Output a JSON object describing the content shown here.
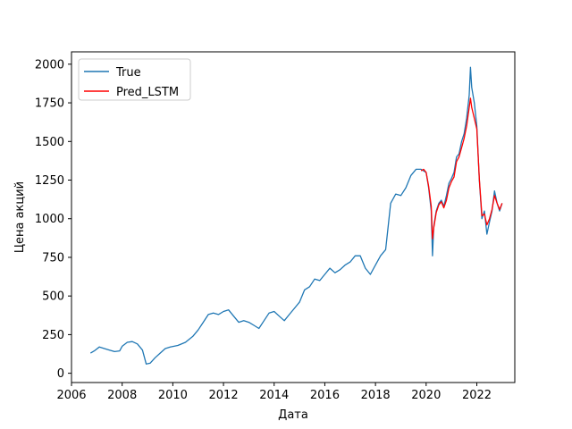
{
  "chart_data": {
    "type": "line",
    "title": "",
    "xlabel": "Дата",
    "ylabel": "Цена акций",
    "xlim": [
      2006.0,
      2023.5
    ],
    "ylim": [
      -60,
      2080
    ],
    "x_ticks": [
      2006,
      2008,
      2010,
      2012,
      2014,
      2016,
      2018,
      2020,
      2022
    ],
    "x_tick_labels": [
      "2006",
      "2008",
      "2010",
      "2012",
      "2014",
      "2016",
      "2018",
      "2020",
      "2022"
    ],
    "y_ticks": [
      0,
      250,
      500,
      750,
      1000,
      1250,
      1500,
      1750,
      2000
    ],
    "y_tick_labels": [
      "0",
      "250",
      "500",
      "750",
      "1000",
      "1250",
      "1500",
      "1750",
      "2000"
    ],
    "grid": false,
    "legend": {
      "position": "top-left",
      "entries": [
        "True",
        "Pred_LSTM"
      ]
    },
    "series": [
      {
        "name": "True",
        "color": "#1f77b4",
        "x": [
          2006.75,
          2006.9,
          2007.1,
          2007.3,
          2007.5,
          2007.7,
          2007.9,
          2008.0,
          2008.2,
          2008.4,
          2008.6,
          2008.8,
          2008.95,
          2009.1,
          2009.3,
          2009.5,
          2009.7,
          2009.9,
          2010.2,
          2010.5,
          2010.8,
          2011.0,
          2011.2,
          2011.4,
          2011.6,
          2011.8,
          2012.0,
          2012.2,
          2012.4,
          2012.6,
          2012.8,
          2013.0,
          2013.2,
          2013.4,
          2013.6,
          2013.8,
          2014.0,
          2014.2,
          2014.4,
          2014.6,
          2014.8,
          2015.0,
          2015.2,
          2015.4,
          2015.6,
          2015.8,
          2016.0,
          2016.2,
          2016.4,
          2016.6,
          2016.8,
          2017.0,
          2017.2,
          2017.4,
          2017.6,
          2017.8,
          2018.0,
          2018.2,
          2018.4,
          2018.5,
          2018.6,
          2018.8,
          2019.0,
          2019.2,
          2019.4,
          2019.6,
          2019.8,
          2020.0,
          2020.1,
          2020.2,
          2020.25,
          2020.3,
          2020.4,
          2020.5,
          2020.6,
          2020.7,
          2020.8,
          2020.9,
          2021.0,
          2021.1,
          2021.2,
          2021.3,
          2021.4,
          2021.5,
          2021.6,
          2021.7,
          2021.75,
          2021.8,
          2021.9,
          2022.0,
          2022.1,
          2022.2,
          2022.3,
          2022.4,
          2022.5,
          2022.6,
          2022.7,
          2022.8,
          2022.9,
          2023.0
        ],
        "y": [
          130,
          145,
          170,
          160,
          150,
          140,
          145,
          175,
          200,
          205,
          190,
          150,
          60,
          65,
          100,
          130,
          160,
          170,
          180,
          200,
          240,
          280,
          330,
          380,
          390,
          380,
          400,
          410,
          370,
          330,
          340,
          330,
          310,
          290,
          340,
          390,
          400,
          370,
          340,
          380,
          420,
          460,
          540,
          560,
          610,
          600,
          640,
          680,
          650,
          670,
          700,
          720,
          760,
          760,
          680,
          640,
          700,
          760,
          800,
          950,
          1100,
          1160,
          1150,
          1200,
          1280,
          1320,
          1320,
          1300,
          1200,
          1050,
          760,
          950,
          1050,
          1100,
          1120,
          1080,
          1150,
          1230,
          1260,
          1300,
          1400,
          1420,
          1500,
          1550,
          1650,
          1800,
          1980,
          1850,
          1750,
          1600,
          1250,
          1000,
          1050,
          900,
          980,
          1050,
          1180,
          1100,
          1050,
          1100
        ]
      },
      {
        "name": "Pred_LSTM",
        "color": "#ff0000",
        "x": [
          2019.8,
          2019.9,
          2020.0,
          2020.1,
          2020.2,
          2020.25,
          2020.3,
          2020.4,
          2020.5,
          2020.6,
          2020.7,
          2020.8,
          2020.9,
          2021.0,
          2021.1,
          2021.2,
          2021.3,
          2021.4,
          2021.5,
          2021.6,
          2021.7,
          2021.75,
          2021.8,
          2021.9,
          2022.0,
          2022.1,
          2022.2,
          2022.3,
          2022.4,
          2022.5,
          2022.6,
          2022.7,
          2022.8,
          2022.9,
          2023.0
        ],
        "y": [
          1310,
          1320,
          1300,
          1210,
          1080,
          870,
          940,
          1040,
          1090,
          1110,
          1070,
          1120,
          1200,
          1240,
          1270,
          1370,
          1400,
          1460,
          1520,
          1600,
          1720,
          1780,
          1720,
          1650,
          1580,
          1260,
          1020,
          1030,
          960,
          1000,
          1060,
          1150,
          1100,
          1060,
          1100
        ]
      }
    ]
  }
}
